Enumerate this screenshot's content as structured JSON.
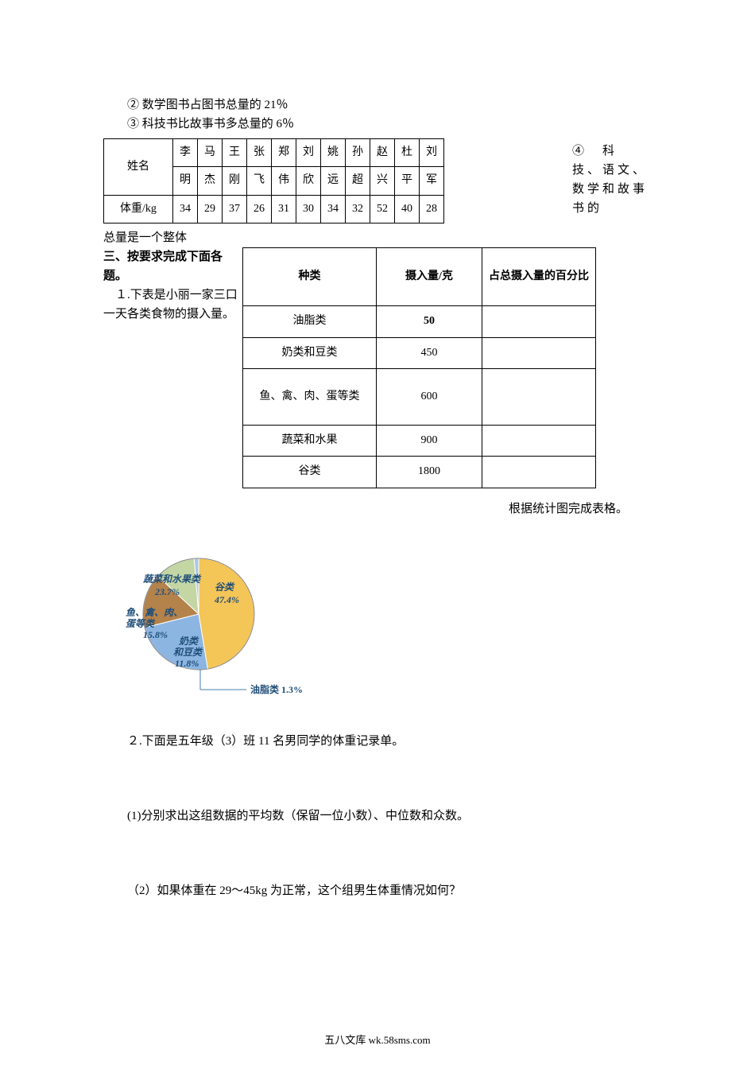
{
  "lines": {
    "line2": "② 数学图书占图书总量的 21％",
    "line3": "③ 科技书比故事书多总量的 6％"
  },
  "note4": {
    "circled": "④",
    "rest": "　科技、语文、数学和故事书的"
  },
  "weight_table": {
    "header": "姓名",
    "row2_header": "体重/kg",
    "names": [
      "李明",
      "马杰",
      "王刚",
      "张飞",
      "郑伟",
      "刘欣",
      "姚远",
      "孙超",
      "赵兴",
      "杜平",
      "刘军"
    ],
    "weights": [
      "34",
      "29",
      "37",
      "26",
      "31",
      "30",
      "34",
      "32",
      "52",
      "40",
      "28"
    ]
  },
  "after_weight": "总量是一个整体",
  "section3_title": "三、按要求完成下面各题。",
  "q1_text": "１.下表是小丽一家三口一天各类食物的摄入量。",
  "food_table": {
    "headers": [
      "种类",
      "摄入量/克",
      "占总摄入量的百分比"
    ],
    "rows": [
      {
        "name": "油脂类",
        "amount": "50",
        "amount_bold": true
      },
      {
        "name": "奶类和豆类",
        "amount": "450"
      },
      {
        "name": "鱼、禽、肉、蛋等类",
        "amount": "600",
        "tall": true
      },
      {
        "name": "蔬菜和水果",
        "amount": "900"
      },
      {
        "name": "谷类",
        "amount": "1800"
      }
    ]
  },
  "complete_text": "根据统计图完成表格。",
  "pie": {
    "background": "#ffffff",
    "slices": [
      {
        "label": "谷类",
        "pct": 47.4,
        "color": "#f4c557"
      },
      {
        "label": "蔬菜和水果类",
        "pct": 23.7,
        "color": "#8db5e2"
      },
      {
        "label": "鱼、禽、肉、蛋等类",
        "pct": 15.8,
        "color": "#b4824b"
      },
      {
        "label": "奶类和豆类",
        "pct": 11.8,
        "color": "#c3d6a4"
      },
      {
        "label": "油脂类",
        "pct": 1.3,
        "color": "#a8c8e8"
      }
    ],
    "labels": {
      "vegfruit": "蔬菜和水果类",
      "vegfruit_pct": "23.7%",
      "grain": "谷类",
      "grain_pct": "47.4%",
      "meat1": "鱼、禽、肉、",
      "meat2": "蛋等类",
      "meat_pct": "15.8%",
      "milk1": "奶类",
      "milk2": "和豆类",
      "milk_pct": "11.8%",
      "oil": "油脂类 1.3%"
    },
    "label_fontsize": 12,
    "label_color": "#1f4e79",
    "label_fontweight": "bold",
    "line_color": "#4a7fb0"
  },
  "q2_text": "２.下面是五年级（3）班 11 名男同学的体重记录单。",
  "q2_sub1": "(1)分别求出这组数据的平均数（保留一位小数）、中位数和众数。",
  "q2_sub2": "（2）如果体重在 29～45kg 为正常，这个组男生体重情况如何？",
  "footer": "五八文库 wk.58sms.com"
}
